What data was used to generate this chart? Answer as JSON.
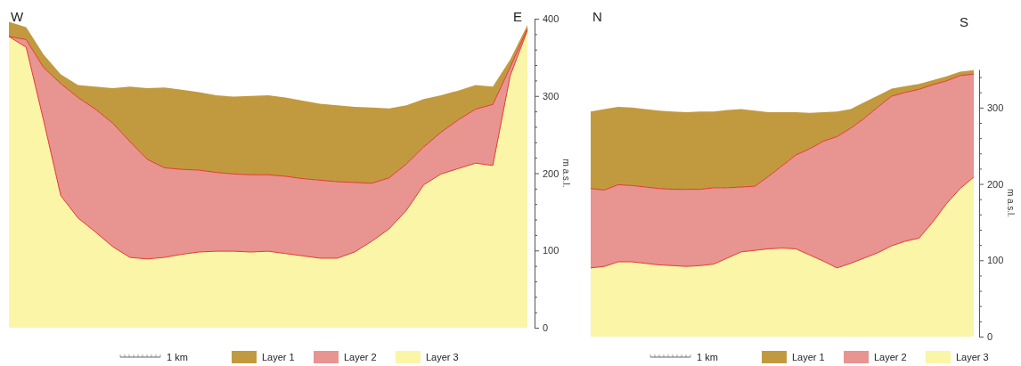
{
  "chart_data": [
    {
      "type": "area",
      "stacked": true,
      "legend": "bottom",
      "tick_labels": "y",
      "ylabel": "m a.s.l.",
      "annotations": [
        "W",
        "E",
        "1 km"
      ],
      "categories": [
        null,
        null,
        null,
        null,
        null,
        null,
        null,
        null,
        null,
        null,
        null,
        null,
        null,
        null,
        null,
        null,
        null,
        null,
        null,
        null,
        null,
        null,
        null,
        null,
        null,
        null,
        null,
        null,
        null,
        null,
        null
      ],
      "ylim": [
        0,
        400
      ],
      "yticks": [
        0,
        {
          "value": 20,
          "label": null
        },
        {
          "value": 40,
          "label": null
        },
        {
          "value": 60,
          "label": null
        },
        {
          "value": 80,
          "label": null
        },
        100,
        {
          "value": 120,
          "label": null
        },
        {
          "value": 140,
          "label": null
        },
        {
          "value": 160,
          "label": null
        },
        {
          "value": 180,
          "label": null
        },
        200,
        {
          "value": 220,
          "label": null
        },
        {
          "value": 240,
          "label": null
        },
        {
          "value": 260,
          "label": null
        },
        {
          "value": 280,
          "label": null
        },
        300,
        {
          "value": 320,
          "label": null
        },
        {
          "value": 340,
          "label": null
        },
        {
          "value": 360,
          "label": null
        },
        {
          "value": 380,
          "label": null
        },
        400
      ],
      "series": [
        {
          "name": "Layer 3",
          "color": "#fbf5a8",
          "values": [
            377,
            363,
            269,
            171,
            142,
            124,
            105,
            91,
            89,
            91,
            95,
            98,
            99,
            99,
            98,
            99,
            96,
            93,
            90,
            90,
            98,
            112,
            128,
            152,
            185,
            199,
            206,
            213,
            210,
            326,
            385
          ]
        },
        {
          "name": "Layer 2",
          "color": "#e89490",
          "values": [
            0,
            10,
            68,
            145,
            156,
            159,
            160,
            150,
            129,
            116,
            110,
            106,
            102,
            100,
            100,
            99,
            100,
            100,
            101,
            99,
            90,
            75,
            66,
            60,
            49,
            54,
            63,
            70,
            79,
            11,
            2
          ]
        },
        {
          "name": "Layer 1",
          "color": "#c19a40",
          "values": [
            19,
            16,
            17,
            12,
            16,
            29,
            45,
            71,
            92,
            104,
            103,
            101,
            100,
            100,
            102,
            103,
            102,
            101,
            99,
            99,
            98,
            98,
            90,
            76,
            62,
            48,
            38,
            31,
            23,
            10,
            5
          ]
        }
      ]
    },
    {
      "type": "area",
      "stacked": true,
      "legend": "bottom",
      "tick_labels": "y",
      "ylabel": "m a.s.l.",
      "annotations": [
        "N",
        "S",
        "1 km"
      ],
      "categories": [
        null,
        null,
        null,
        null,
        null,
        null,
        null,
        null,
        null,
        null,
        null,
        null,
        null,
        null,
        null,
        null,
        null,
        null,
        null,
        null,
        null,
        null,
        null,
        null,
        null,
        null,
        null,
        null,
        null
      ],
      "ylim": [
        0,
        350
      ],
      "yticks": [
        0,
        {
          "value": 20,
          "label": null
        },
        {
          "value": 40,
          "label": null
        },
        {
          "value": 60,
          "label": null
        },
        {
          "value": 80,
          "label": null
        },
        100,
        {
          "value": 120,
          "label": null
        },
        {
          "value": 140,
          "label": null
        },
        {
          "value": 160,
          "label": null
        },
        {
          "value": 180,
          "label": null
        },
        200,
        {
          "value": 220,
          "label": null
        },
        {
          "value": 240,
          "label": null
        },
        {
          "value": 260,
          "label": null
        },
        {
          "value": 280,
          "label": null
        },
        300,
        {
          "value": 320,
          "label": null
        },
        {
          "value": 340,
          "label": null
        }
      ],
      "series": [
        {
          "name": "Layer 3",
          "color": "#fbf5a8",
          "values": [
            90,
            92,
            98,
            98,
            96,
            94,
            93,
            92,
            93,
            95,
            103,
            111,
            113,
            115,
            116,
            115,
            107,
            99,
            90,
            96,
            103,
            110,
            119,
            125,
            129,
            150,
            174,
            194,
            209
          ]
        },
        {
          "name": "Layer 2",
          "color": "#e89490",
          "values": [
            104,
            100,
            101,
            100,
            100,
            100,
            100,
            101,
            100,
            100,
            92,
            85,
            84,
            95,
            108,
            123,
            139,
            157,
            172,
            177,
            183,
            191,
            196,
            195,
            195,
            180,
            161,
            148,
            135
          ]
        },
        {
          "name": "Layer 1",
          "color": "#c19a40",
          "values": [
            101,
            106,
            102,
            102,
            102,
            102,
            102,
            101,
            102,
            100,
            102,
            102,
            99,
            84,
            70,
            56,
            47,
            38,
            33,
            25,
            21,
            15,
            10,
            8,
            7,
            6,
            6,
            5,
            5
          ]
        }
      ]
    }
  ]
}
